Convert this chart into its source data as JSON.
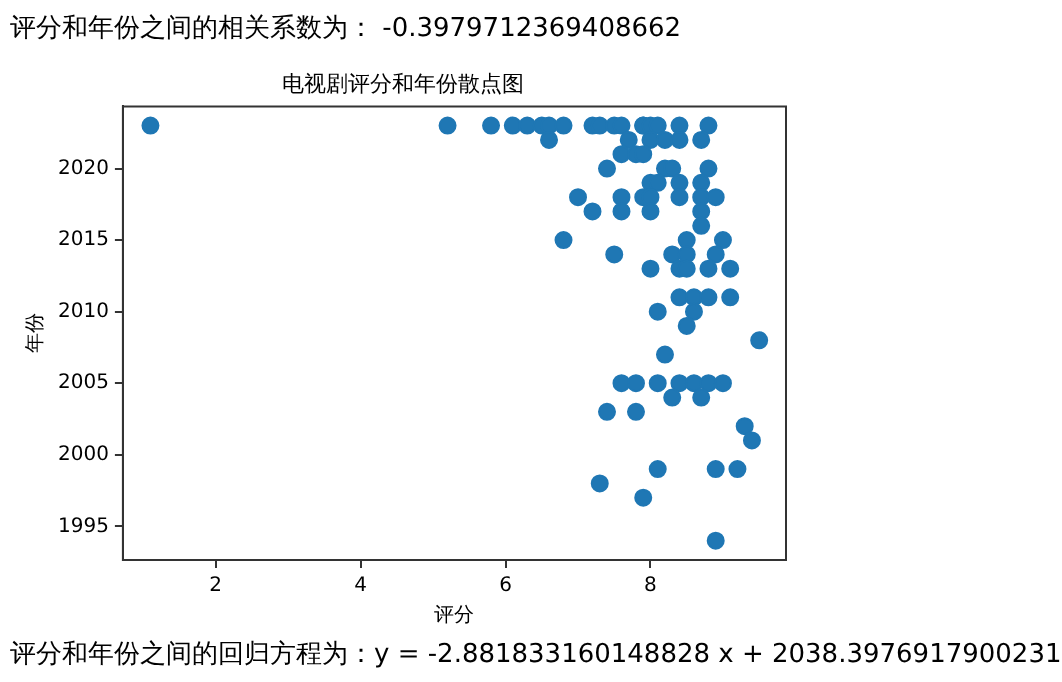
{
  "chart_data": {
    "type": "scatter",
    "title": "电视剧评分和年份散点图",
    "xlabel": "评分",
    "ylabel": "年份",
    "annotations": [
      "评分和年份之间的相关系数为： -0.3979712369408662",
      "评分和年份之间的回归方程为：y = -2.881833160148828 x + 2038.3976917900231"
    ],
    "color": "#1f77b4",
    "marker": "circle",
    "x": [
      1.1,
      5.2,
      5.8,
      6.1,
      6.3,
      6.5,
      6.6,
      6.8,
      7.2,
      7.3,
      7.5,
      7.6,
      7.9,
      7.9,
      8.0,
      8.1,
      8.4,
      8.8,
      6.6,
      7.7,
      8.0,
      8.2,
      8.4,
      8.7,
      7.6,
      7.8,
      7.9,
      7.4,
      8.2,
      8.3,
      8.8,
      8.0,
      8.1,
      8.4,
      8.7,
      7.0,
      7.6,
      7.9,
      8.0,
      8.4,
      8.7,
      8.9,
      7.2,
      7.6,
      8.0,
      8.7,
      8.7,
      6.8,
      8.5,
      9.0,
      7.5,
      8.3,
      8.5,
      8.9,
      8.0,
      8.4,
      8.5,
      8.8,
      9.1,
      8.4,
      8.6,
      8.8,
      9.1,
      8.1,
      8.6,
      8.5,
      9.5,
      8.2,
      7.6,
      7.8,
      8.1,
      8.4,
      8.6,
      8.8,
      9.0,
      8.3,
      8.7,
      7.4,
      7.8,
      9.3,
      9.4,
      8.1,
      8.9,
      9.2,
      7.3,
      7.9,
      8.9
    ],
    "values": [
      2023,
      2023,
      2023,
      2023,
      2023,
      2023,
      2023,
      2023,
      2023,
      2023,
      2023,
      2023,
      2023,
      2023,
      2023,
      2023,
      2023,
      2023,
      2022,
      2022,
      2022,
      2022,
      2022,
      2022,
      2021,
      2021,
      2021,
      2020,
      2020,
      2020,
      2020,
      2019,
      2019,
      2019,
      2019,
      2018,
      2018,
      2018,
      2018,
      2018,
      2018,
      2018,
      2017,
      2017,
      2017,
      2017,
      2016,
      2015,
      2015,
      2015,
      2014,
      2014,
      2014,
      2014,
      2013,
      2013,
      2013,
      2013,
      2013,
      2011,
      2011,
      2011,
      2011,
      2010,
      2010,
      2009,
      2008,
      2007,
      2005,
      2005,
      2005,
      2005,
      2005,
      2005,
      2005,
      2004,
      2004,
      2003,
      2003,
      2002,
      2001,
      1999,
      1999,
      1999,
      1998,
      1997,
      1994
    ],
    "xlim": [
      0.72,
      9.87
    ],
    "ylim": [
      1992.65,
      2024.34
    ],
    "xticks": [
      2,
      4,
      6,
      8
    ],
    "yticks": [
      1995,
      2000,
      2005,
      2010,
      2015,
      2020
    ]
  }
}
